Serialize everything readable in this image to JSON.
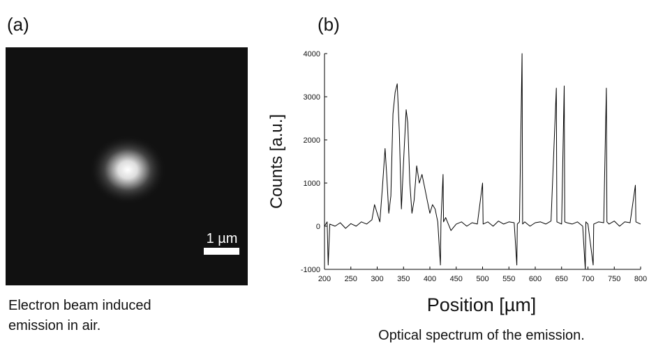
{
  "panels": {
    "a": {
      "label": "(a)",
      "scale_bar": "1 µm",
      "caption": [
        "Electron beam induced",
        "emission in air."
      ]
    },
    "b": {
      "label": "(b)",
      "caption": "Optical spectrum of the emission."
    }
  },
  "chart_data": {
    "type": "line",
    "x_label": "Position [µm]",
    "y_label": "Counts [a.u.]",
    "xlim": [
      200,
      800
    ],
    "xticks": [
      200,
      250,
      300,
      350,
      400,
      450,
      500,
      550,
      600,
      650,
      700,
      750,
      800
    ],
    "ylim": [
      -1000,
      4000
    ],
    "yticks": [
      -1000,
      0,
      1000,
      2000,
      3000,
      4000
    ],
    "series": [
      {
        "color": "#000000",
        "x": [
          200,
          205,
          207,
          210,
          220,
          230,
          240,
          250,
          260,
          270,
          280,
          290,
          295,
          300,
          305,
          310,
          315,
          318,
          322,
          326,
          330,
          334,
          338,
          342,
          346,
          350,
          355,
          358,
          362,
          366,
          370,
          375,
          380,
          385,
          390,
          395,
          400,
          405,
          410,
          415,
          420,
          421,
          425,
          426,
          430,
          440,
          450,
          460,
          470,
          480,
          490,
          500,
          501,
          510,
          520,
          530,
          540,
          550,
          560,
          565,
          566,
          570,
          575,
          576,
          580,
          590,
          600,
          610,
          620,
          630,
          640,
          641,
          650,
          655,
          656,
          660,
          670,
          680,
          690,
          695,
          696,
          700,
          710,
          711,
          720,
          730,
          735,
          736,
          740,
          750,
          760,
          770,
          780,
          790,
          791,
          800
        ],
        "values": [
          0,
          100,
          -900,
          50,
          0,
          80,
          -50,
          60,
          0,
          100,
          50,
          150,
          500,
          300,
          100,
          900,
          1800,
          1200,
          300,
          700,
          2600,
          3100,
          3300,
          2200,
          400,
          1500,
          2700,
          2400,
          1000,
          300,
          600,
          1400,
          1000,
          1200,
          900,
          600,
          300,
          500,
          400,
          100,
          -900,
          100,
          1200,
          100,
          200,
          -100,
          50,
          100,
          0,
          80,
          50,
          1000,
          50,
          100,
          0,
          120,
          50,
          100,
          80,
          -900,
          50,
          100,
          4000,
          50,
          100,
          0,
          80,
          100,
          50,
          120,
          3200,
          100,
          50,
          3250,
          100,
          80,
          50,
          100,
          0,
          -1000,
          100,
          50,
          -900,
          50,
          100,
          80,
          3200,
          100,
          50,
          120,
          0,
          100,
          80,
          950,
          100,
          50
        ]
      }
    ]
  }
}
